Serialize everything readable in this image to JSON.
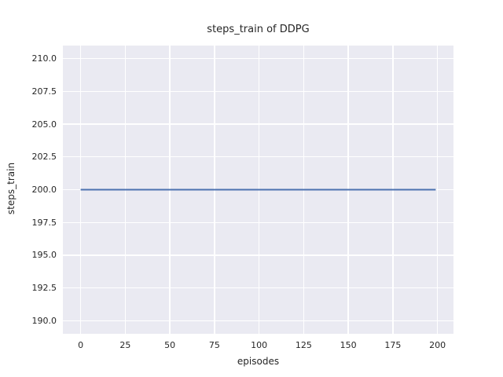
{
  "colors": {
    "figure_background": "#FFFFFF",
    "axes_background": "#EAEAF2",
    "grid": "#FFFFFF",
    "text": "#262626",
    "line": "#4C72B0"
  },
  "chart_data": {
    "type": "line",
    "title": "steps_train of DDPG",
    "xlabel": "episodes",
    "ylabel": "steps_train",
    "xlim": [
      -9.95,
      208.95
    ],
    "ylim": [
      189.0,
      211.0
    ],
    "xticks": [
      0,
      25,
      50,
      75,
      100,
      125,
      150,
      175,
      200
    ],
    "xtick_labels": [
      "0",
      "25",
      "50",
      "75",
      "100",
      "125",
      "150",
      "175",
      "200"
    ],
    "yticks": [
      190.0,
      192.5,
      195.0,
      197.5,
      200.0,
      202.5,
      205.0,
      207.5,
      210.0
    ],
    "ytick_labels": [
      "190.0",
      "192.5",
      "195.0",
      "197.5",
      "200.0",
      "202.5",
      "205.0",
      "207.5",
      "210.0"
    ],
    "grid": true,
    "legend": false,
    "series": [
      {
        "name": "steps_train",
        "constant_value": 200,
        "n_points": 200,
        "x": [
          0,
          199
        ],
        "y": [
          200,
          200
        ]
      }
    ]
  }
}
